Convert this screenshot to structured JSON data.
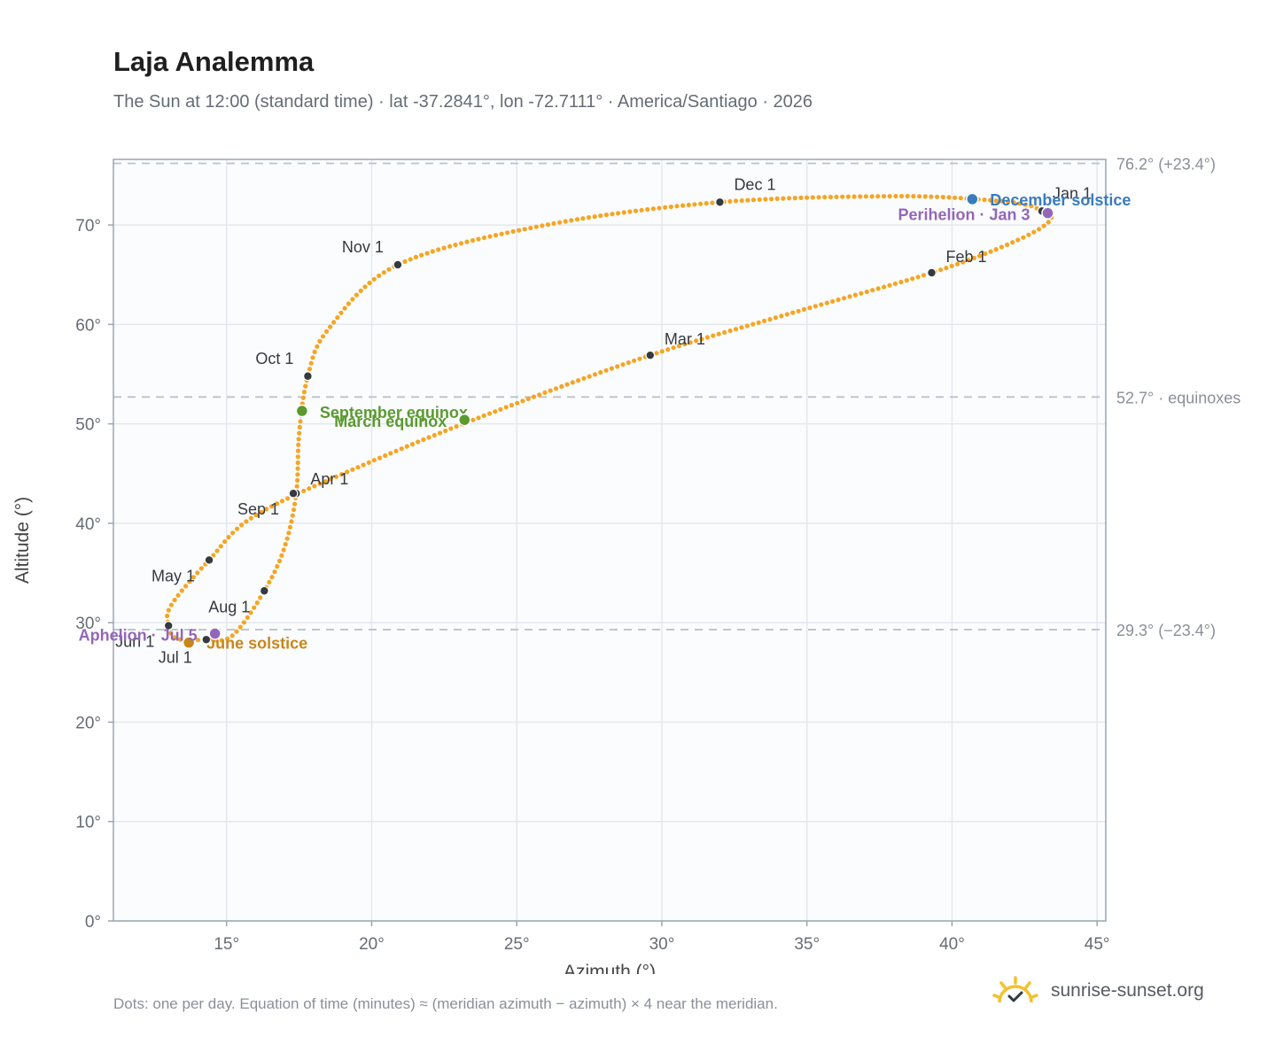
{
  "header": {
    "title": "Laja Analemma",
    "subtitle": "The Sun at 12:00 (standard time) · lat -37.2841°, lon -72.7111° · America/Santiago · 2026"
  },
  "footer": {
    "note": "Dots: one per day. Equation of time (minutes) ≈ (meridian azimuth − azimuth) × 4 near the meridian.",
    "brand": "sunrise-sunset.org",
    "brand_icon": "sun-check-icon"
  },
  "colors": {
    "curve": "#f5a524",
    "month_marker": "#343a40",
    "equinox": "#5a9a2e",
    "june_solstice": "#c9861a",
    "december_solstice": "#3a7bbf",
    "apsis": "#9466b8",
    "grid": "#e4e8ee",
    "reference_line": "#b9c3cc",
    "plot_bg": "#fbfcfe"
  },
  "chart_data": {
    "type": "scatter",
    "xlabel": "Azimuth (°)",
    "ylabel": "Altitude (°)",
    "xlim": [
      11.1,
      45.3
    ],
    "ylim": [
      0,
      76.6
    ],
    "xticks": [
      15,
      20,
      25,
      30,
      35,
      40,
      45
    ],
    "yticks": [
      0,
      10,
      20,
      30,
      40,
      50,
      60,
      70
    ],
    "grid": true,
    "tick_suffix": "°",
    "reference_lines": [
      {
        "y": 76.2,
        "label": "76.2° (+23.4°)"
      },
      {
        "y": 52.7,
        "label": "52.7° · equinoxes"
      },
      {
        "y": 29.3,
        "label": "29.3° (−23.4°)"
      }
    ],
    "series_path": {
      "dot_count": 365,
      "waypoints": [
        [
          43.1,
          71.4
        ],
        [
          43.4,
          70.5
        ],
        [
          42.2,
          68.4
        ],
        [
          39.3,
          65.2
        ],
        [
          34.3,
          61.0
        ],
        [
          29.6,
          56.9
        ],
        [
          24.3,
          51.3
        ],
        [
          19.9,
          46.1
        ],
        [
          16.0,
          40.8
        ],
        [
          14.4,
          36.3
        ],
        [
          13.1,
          31.8
        ],
        [
          13.0,
          29.7
        ],
        [
          13.3,
          28.4
        ],
        [
          14.3,
          28.3
        ],
        [
          15.2,
          28.7
        ],
        [
          16.3,
          33.2
        ],
        [
          17.0,
          37.6
        ],
        [
          17.4,
          43.0
        ],
        [
          17.5,
          49.0
        ],
        [
          17.8,
          54.8
        ],
        [
          18.5,
          59.5
        ],
        [
          20.9,
          66.0
        ],
        [
          26.0,
          70.0
        ],
        [
          32.0,
          72.3
        ],
        [
          38.0,
          72.9
        ],
        [
          41.3,
          72.5
        ],
        [
          42.6,
          72.0
        ],
        [
          43.1,
          71.4
        ]
      ]
    },
    "month_markers": [
      {
        "label": "Jan 1",
        "x": 43.1,
        "y": 71.4,
        "dx": 12,
        "dy": -14,
        "anchor": "start"
      },
      {
        "label": "Feb 1",
        "x": 39.3,
        "y": 65.2,
        "dx": 16,
        "dy": -12,
        "anchor": "start"
      },
      {
        "label": "Mar 1",
        "x": 29.6,
        "y": 56.9,
        "dx": 16,
        "dy": -12,
        "anchor": "start"
      },
      {
        "label": "Apr 1",
        "x": 17.4,
        "y": 43.0,
        "dx": 16,
        "dy": -10,
        "anchor": "start"
      },
      {
        "label": "May 1",
        "x": 14.4,
        "y": 36.3,
        "dx": -16,
        "dy": 24,
        "anchor": "end"
      },
      {
        "label": "Jun 1",
        "x": 13.0,
        "y": 29.7,
        "dx": -16,
        "dy": 24,
        "anchor": "end"
      },
      {
        "label": "Jul 1",
        "x": 14.3,
        "y": 28.3,
        "dx": -16,
        "dy": 26,
        "anchor": "end"
      },
      {
        "label": "Aug 1",
        "x": 16.3,
        "y": 33.2,
        "dx": -16,
        "dy": 24,
        "anchor": "end"
      },
      {
        "label": "Sep 1",
        "x": 17.3,
        "y": 43.0,
        "dx": -16,
        "dy": 24,
        "anchor": "end"
      },
      {
        "label": "Oct 1",
        "x": 17.8,
        "y": 54.8,
        "dx": -16,
        "dy": -14,
        "anchor": "end"
      },
      {
        "label": "Nov 1",
        "x": 20.9,
        "y": 66.0,
        "dx": -16,
        "dy": -14,
        "anchor": "end"
      },
      {
        "label": "Dec 1",
        "x": 32.0,
        "y": 72.3,
        "dx": 16,
        "dy": -14,
        "anchor": "start"
      }
    ],
    "events": [
      {
        "label": "December solstice",
        "x": 40.7,
        "y": 72.6,
        "color_key": "december_solstice",
        "dx": 20,
        "dy": 7,
        "anchor": "start"
      },
      {
        "label": "Perihelion · Jan 3",
        "x": 43.3,
        "y": 71.2,
        "color_key": "apsis",
        "dx": -20,
        "dy": 8,
        "anchor": "end"
      },
      {
        "label": "September equinox",
        "x": 17.6,
        "y": 51.3,
        "color_key": "equinox",
        "dx": 20,
        "dy": 8,
        "anchor": "start"
      },
      {
        "label": "March equinox",
        "x": 23.2,
        "y": 50.4,
        "color_key": "equinox",
        "dx": -20,
        "dy": 8,
        "anchor": "end"
      },
      {
        "label": "June solstice",
        "x": 13.7,
        "y": 28.0,
        "color_key": "june_solstice",
        "dx": 20,
        "dy": 7,
        "anchor": "start"
      },
      {
        "label": "Aphelion · Jul 5",
        "x": 14.6,
        "y": 28.9,
        "color_key": "apsis",
        "dx": -20,
        "dy": 8,
        "anchor": "end"
      }
    ]
  }
}
